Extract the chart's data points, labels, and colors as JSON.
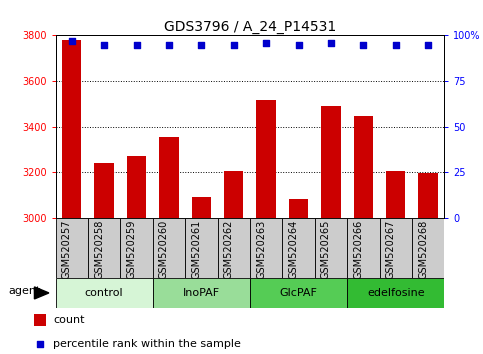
{
  "title": "GDS3796 / A_24_P14531",
  "samples": [
    "GSM520257",
    "GSM520258",
    "GSM520259",
    "GSM520260",
    "GSM520261",
    "GSM520262",
    "GSM520263",
    "GSM520264",
    "GSM520265",
    "GSM520266",
    "GSM520267",
    "GSM520268"
  ],
  "counts": [
    3780,
    3240,
    3270,
    3355,
    3090,
    3205,
    3515,
    3080,
    3490,
    3445,
    3205,
    3195
  ],
  "percentiles": [
    97,
    95,
    95,
    95,
    95,
    95,
    96,
    95,
    96,
    95,
    95,
    95
  ],
  "bar_color": "#cc0000",
  "dot_color": "#0000cc",
  "ylim_left": [
    3000,
    3800
  ],
  "ylim_right": [
    0,
    100
  ],
  "yticks_left": [
    3000,
    3200,
    3400,
    3600,
    3800
  ],
  "yticks_right": [
    0,
    25,
    50,
    75,
    100
  ],
  "ylabel_right_labels": [
    "0",
    "25",
    "50",
    "75",
    "100%"
  ],
  "groups": [
    {
      "label": "control",
      "start": 0,
      "end": 3,
      "color": "#d6f5d6"
    },
    {
      "label": "InoPAF",
      "start": 3,
      "end": 6,
      "color": "#99dd99"
    },
    {
      "label": "GlcPAF",
      "start": 6,
      "end": 9,
      "color": "#55cc55"
    },
    {
      "label": "edelfosine",
      "start": 9,
      "end": 12,
      "color": "#33bb33"
    }
  ],
  "agent_label": "agent",
  "legend_count_label": "count",
  "legend_pct_label": "percentile rank within the sample",
  "bg_color": "#ffffff",
  "title_fontsize": 10,
  "tick_fontsize": 7,
  "label_fontsize": 8,
  "xtick_bg": "#cccccc"
}
